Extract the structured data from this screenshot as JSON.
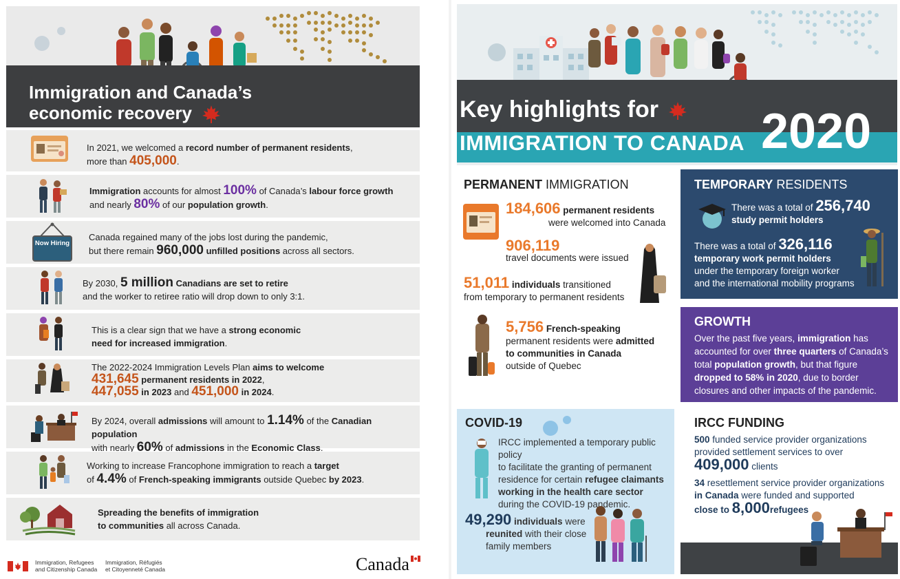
{
  "left": {
    "title_line1": "Immigration and Canada’s",
    "title_line2": "economic recovery",
    "rows": [
      {
        "a": "In 2021, we welcomed a ",
        "b": "record number of permanent residents",
        "c": ",",
        "d": "more than ",
        "e": "405,000",
        "f": "."
      },
      {
        "a": "Immigration",
        "b": " accounts for almost ",
        "c": "100%",
        "d": " of Canada’s ",
        "e": "labour force growth",
        "f": "and nearly ",
        "g": "80%",
        "h": " of our ",
        "i": "population growth",
        "j": "."
      },
      {
        "a": "Canada regained many of the jobs lost during the pandemic,",
        "b": "but there remain ",
        "c": "960,000",
        "d": " unfilled positions",
        "e": " across all sectors.",
        "sign": "Now Hiring"
      },
      {
        "a": "By 2030, ",
        "b": "5 million",
        "c": " Canadians are set to retire",
        "d": "and the worker to retiree ratio will drop down to only 3:1."
      },
      {
        "a": "This is a clear sign that we have a ",
        "b": "strong economic",
        "c": "need for increased immigration",
        "d": "."
      },
      {
        "a": "The 2022-2024 Immigration Levels Plan ",
        "b": "aims to welcome",
        "c": "431,645",
        "d": " permanent residents in 2022",
        "e": ",",
        "f": "447,055",
        "g": " in 2023",
        "h": " and ",
        "i": "451,000",
        "j": " in 2024",
        "k": "."
      },
      {
        "a": "By 2024, overall ",
        "b": "admissions",
        "c": " will amount to ",
        "d": "1.14%",
        "e": " of the ",
        "f": "Canadian population",
        "g": "with nearly ",
        "h": "60%",
        "i": " of ",
        "j": "admissions",
        "k": " in the ",
        "l": "Economic Class",
        "m": "."
      },
      {
        "a": "Working to increase Francophone immigration to reach a ",
        "b": "target",
        "c": "of ",
        "d": "4.4%",
        "e": " of ",
        "f": "French-speaking immigrants",
        "g": " outside Quebec ",
        "h": "by 2023",
        "i": "."
      },
      {
        "a": "Spreading the benefits of immigration",
        "b": "to communities",
        "c": " all across Canada."
      }
    ],
    "footer": {
      "dept_en1": "Immigration, Refugees",
      "dept_en2": "and Citizenship Canada",
      "dept_fr1": "Immigration, Réfugiés",
      "dept_fr2": "et Citoyenneté Canada",
      "wordmark": "Canada"
    }
  },
  "right": {
    "title1": "Key highlights for",
    "title2": "IMMIGRATION TO CANADA",
    "year": "2020",
    "permanent": {
      "hdr_b": "PERMANENT",
      "hdr_r": " IMMIGRATION",
      "s1_num": "184,606",
      "s1_a": " permanent residents",
      "s1_b": "were welcomed into Canada",
      "s2_num": "906,119",
      "s2_a": "travel documents were issued",
      "s3_num": "51,011",
      "s3_a": " individuals",
      "s3_b": " transitioned",
      "s3_c": "from temporary to permanent residents",
      "s4_num": "5,756",
      "s4_a": " French-speaking",
      "s4_b": "permanent residents were ",
      "s4_c": "admitted",
      "s4_d": "to communities in Canada",
      "s4_e": "outside of Quebec"
    },
    "temporary": {
      "hdr_b": "TEMPORARY",
      "hdr_r": " RESIDENTS",
      "t1_a": "There was a total of ",
      "t1_num": "256,740",
      "t1_b": "study permit holders",
      "t2_a": "There was a total of ",
      "t2_num": "326,116",
      "t2_b": "temporary work permit holders",
      "t2_c": "under the temporary foreign worker",
      "t2_d": "and the international mobility programs"
    },
    "growth": {
      "hdr": "GROWTH",
      "a": "Over the past five years, ",
      "b": "immigration",
      "c": " has",
      "d": "accounted for over ",
      "e": "three quarters",
      "f": " of Canada’s",
      "g": "total ",
      "h": "population growth",
      "i": ", but that figure",
      "j": "dropped to 58% in 2020",
      "k": ", due to border",
      "l": "closures and other impacts of the pandemic."
    },
    "covid": {
      "hdr": "COVID-19",
      "a": "IRCC implemented a temporary public policy",
      "b": "to facilitate the granting of permanent",
      "c": "residence for certain ",
      "d": "refugee claimants",
      "e": "working in the health care sector",
      "f": "during the COVID-19 pandemic.",
      "num": "49,290",
      "g": " individuals",
      "h": " were",
      "i": "reunited",
      "j": " with their close",
      "k": "family members"
    },
    "funding": {
      "hdr": "IRCC FUNDING",
      "a": "500",
      "b": " funded service provider organizations",
      "c": "provided settlement services to over",
      "num1": "409,000",
      "d": " clients",
      "e": "34",
      "f": " resettlement service provider organizations",
      "g": "in Canada",
      "h": " were funded and supported",
      "i": "close to ",
      "num2": "8,000",
      "j": "refugees"
    }
  },
  "colors": {
    "dark_band": "#3d3e40",
    "teal": "#2aa5b3",
    "navy_box": "#2c4a6e",
    "purple_box": "#5c3f97",
    "covid_box": "#cfe6f4",
    "orange": "#e9792b",
    "maple_red": "#d52b1e"
  },
  "icons": [
    "maple-leaf-icon",
    "world-map-icon",
    "virus-icon",
    "id-card-icon",
    "graduation-cap-icon",
    "canada-flag-icon",
    "barn-icon"
  ]
}
